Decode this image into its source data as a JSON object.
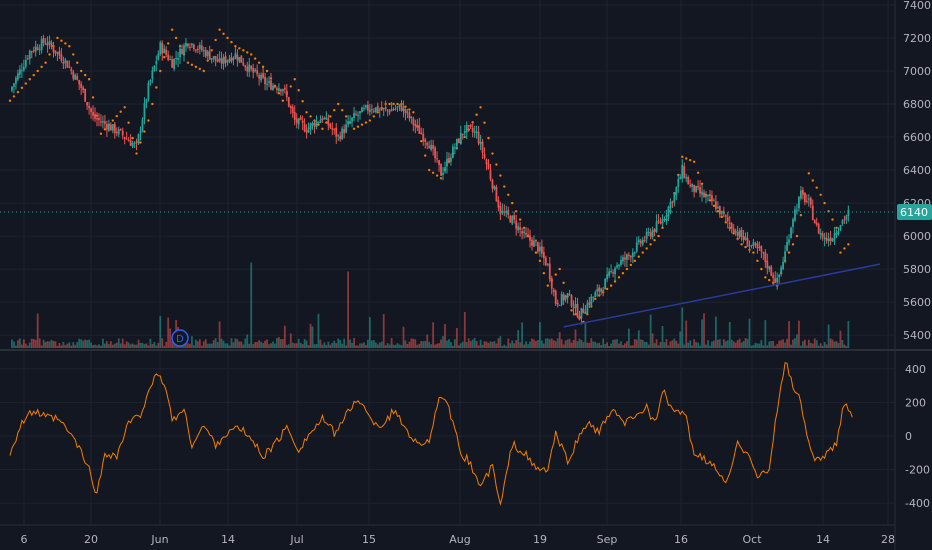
{
  "chart_data": [
    {
      "type": "candlestick",
      "panel": "price",
      "x_tick_labels": [
        "6",
        "20",
        "Jun",
        "14",
        "Jul",
        "15",
        "Aug",
        "19",
        "Sep",
        "16",
        "Oct",
        "14",
        "28"
      ],
      "y_tick_labels": [
        "7400",
        "7200",
        "7000",
        "6800",
        "6600",
        "6400",
        "6200",
        "6000",
        "5800",
        "5600",
        "5400"
      ],
      "ylim": [
        5310,
        7430
      ],
      "last_price": 6140,
      "last_price_label": "6140",
      "dividend_marker": "D",
      "close_path": [
        [
          0,
          6880
        ],
        [
          10,
          7120
        ],
        [
          18,
          7180
        ],
        [
          28,
          7060
        ],
        [
          36,
          6900
        ],
        [
          42,
          6720
        ],
        [
          48,
          6680
        ],
        [
          56,
          6620
        ],
        [
          64,
          6540
        ],
        [
          70,
          6900
        ],
        [
          76,
          7150
        ],
        [
          82,
          7050
        ],
        [
          90,
          7180
        ],
        [
          98,
          7120
        ],
        [
          106,
          7050
        ],
        [
          114,
          7100
        ],
        [
          122,
          7000
        ],
        [
          130,
          6920
        ],
        [
          138,
          6900
        ],
        [
          144,
          6700
        ],
        [
          150,
          6650
        ],
        [
          158,
          6720
        ],
        [
          166,
          6600
        ],
        [
          174,
          6720
        ],
        [
          182,
          6780
        ],
        [
          190,
          6760
        ],
        [
          198,
          6780
        ],
        [
          206,
          6650
        ],
        [
          212,
          6560
        ],
        [
          218,
          6380
        ],
        [
          224,
          6520
        ],
        [
          230,
          6650
        ],
        [
          236,
          6620
        ],
        [
          242,
          6400
        ],
        [
          248,
          6150
        ],
        [
          254,
          6100
        ],
        [
          260,
          6000
        ],
        [
          266,
          5950
        ],
        [
          272,
          5820
        ],
        [
          276,
          5600
        ],
        [
          282,
          5640
        ],
        [
          288,
          5520
        ],
        [
          294,
          5620
        ],
        [
          300,
          5700
        ],
        [
          306,
          5820
        ],
        [
          312,
          5870
        ],
        [
          318,
          5950
        ],
        [
          324,
          6020
        ],
        [
          330,
          6100
        ],
        [
          336,
          6250
        ],
        [
          340,
          6400
        ],
        [
          344,
          6300
        ],
        [
          350,
          6250
        ],
        [
          356,
          6200
        ],
        [
          362,
          6100
        ],
        [
          368,
          6020
        ],
        [
          374,
          5950
        ],
        [
          380,
          5900
        ],
        [
          384,
          5800
        ],
        [
          388,
          5720
        ],
        [
          392,
          5900
        ],
        [
          396,
          6120
        ],
        [
          400,
          6250
        ],
        [
          404,
          6200
        ],
        [
          408,
          6050
        ],
        [
          412,
          5980
        ],
        [
          416,
          6000
        ],
        [
          420,
          6080
        ],
        [
          424,
          6140
        ]
      ],
      "parabolic_sar_path": [
        [
          0,
          6820
        ],
        [
          10,
          6950
        ],
        [
          18,
          7050
        ],
        [
          24,
          7200
        ],
        [
          30,
          7150
        ],
        [
          36,
          7000
        ],
        [
          40,
          6950
        ],
        [
          46,
          6620
        ],
        [
          52,
          6700
        ],
        [
          58,
          6780
        ],
        [
          64,
          6500
        ],
        [
          70,
          6700
        ],
        [
          76,
          7000
        ],
        [
          82,
          7250
        ],
        [
          90,
          7050
        ],
        [
          98,
          7000
        ],
        [
          106,
          7250
        ],
        [
          114,
          7150
        ],
        [
          122,
          7100
        ],
        [
          130,
          7000
        ],
        [
          138,
          6820
        ],
        [
          144,
          6950
        ],
        [
          150,
          6750
        ],
        [
          158,
          6650
        ],
        [
          166,
          6800
        ],
        [
          174,
          6650
        ],
        [
          182,
          6700
        ],
        [
          190,
          6800
        ],
        [
          198,
          6800
        ],
        [
          204,
          6750
        ],
        [
          212,
          6400
        ],
        [
          218,
          6350
        ],
        [
          224,
          6500
        ],
        [
          230,
          6600
        ],
        [
          238,
          6780
        ],
        [
          244,
          6500
        ],
        [
          250,
          6300
        ],
        [
          256,
          6150
        ],
        [
          262,
          6000
        ],
        [
          268,
          5850
        ],
        [
          272,
          5700
        ],
        [
          278,
          5800
        ],
        [
          284,
          5550
        ],
        [
          290,
          5480
        ],
        [
          296,
          5620
        ],
        [
          304,
          5700
        ],
        [
          312,
          5800
        ],
        [
          320,
          5900
        ],
        [
          328,
          6000
        ],
        [
          334,
          6150
        ],
        [
          340,
          6480
        ],
        [
          346,
          6450
        ],
        [
          352,
          6250
        ],
        [
          358,
          6150
        ],
        [
          364,
          6050
        ],
        [
          370,
          5950
        ],
        [
          376,
          5900
        ],
        [
          382,
          5750
        ],
        [
          388,
          5700
        ],
        [
          392,
          5850
        ],
        [
          398,
          6000
        ],
        [
          404,
          6380
        ],
        [
          410,
          6250
        ],
        [
          414,
          6150
        ],
        [
          418,
          6050
        ],
        [
          420,
          5900
        ],
        [
          424,
          5950
        ]
      ],
      "trendline": [
        [
          280,
          5450
        ],
        [
          440,
          5830
        ]
      ]
    },
    {
      "type": "bar",
      "panel": "volume",
      "note_scale": "relative",
      "spikes": [
        [
          122,
          0.95
        ],
        [
          171,
          0.85
        ],
        [
          230,
          0.4
        ],
        [
          340,
          0.45
        ],
        [
          357,
          0.35
        ],
        [
          424,
          0.3
        ]
      ]
    },
    {
      "type": "line",
      "panel": "oscillator",
      "y_tick_labels": [
        "400",
        "200",
        "0",
        "-200",
        "-400"
      ],
      "ylim": [
        -530,
        500
      ],
      "values_path": [
        [
          0,
          -100
        ],
        [
          6,
          80
        ],
        [
          12,
          150
        ],
        [
          18,
          110
        ],
        [
          24,
          100
        ],
        [
          30,
          20
        ],
        [
          34,
          -50
        ],
        [
          40,
          -200
        ],
        [
          44,
          -350
        ],
        [
          48,
          -100
        ],
        [
          54,
          -120
        ],
        [
          60,
          80
        ],
        [
          66,
          120
        ],
        [
          70,
          280
        ],
        [
          74,
          350
        ],
        [
          78,
          320
        ],
        [
          82,
          100
        ],
        [
          88,
          150
        ],
        [
          92,
          -50
        ],
        [
          98,
          60
        ],
        [
          104,
          -50
        ],
        [
          110,
          20
        ],
        [
          116,
          50
        ],
        [
          122,
          -20
        ],
        [
          128,
          -120
        ],
        [
          134,
          -50
        ],
        [
          140,
          50
        ],
        [
          146,
          -80
        ],
        [
          152,
          20
        ],
        [
          158,
          100
        ],
        [
          164,
          20
        ],
        [
          170,
          120
        ],
        [
          176,
          230
        ],
        [
          182,
          100
        ],
        [
          188,
          60
        ],
        [
          194,
          150
        ],
        [
          200,
          50
        ],
        [
          206,
          -50
        ],
        [
          212,
          -20
        ],
        [
          218,
          250
        ],
        [
          222,
          150
        ],
        [
          228,
          -100
        ],
        [
          232,
          -150
        ],
        [
          238,
          -300
        ],
        [
          244,
          -180
        ],
        [
          248,
          -420
        ],
        [
          254,
          -50
        ],
        [
          260,
          -100
        ],
        [
          266,
          -200
        ],
        [
          272,
          -200
        ],
        [
          276,
          10
        ],
        [
          282,
          -150
        ],
        [
          286,
          -50
        ],
        [
          292,
          80
        ],
        [
          298,
          20
        ],
        [
          304,
          150
        ],
        [
          310,
          80
        ],
        [
          316,
          100
        ],
        [
          322,
          180
        ],
        [
          326,
          70
        ],
        [
          330,
          280
        ],
        [
          334,
          160
        ],
        [
          338,
          150
        ],
        [
          342,
          100
        ],
        [
          346,
          -100
        ],
        [
          352,
          -150
        ],
        [
          358,
          -200
        ],
        [
          362,
          -300
        ],
        [
          368,
          -50
        ],
        [
          374,
          -100
        ],
        [
          378,
          -250
        ],
        [
          384,
          -200
        ],
        [
          388,
          150
        ],
        [
          392,
          450
        ],
        [
          396,
          300
        ],
        [
          400,
          200
        ],
        [
          404,
          -50
        ],
        [
          408,
          -150
        ],
        [
          414,
          -100
        ],
        [
          418,
          -50
        ],
        [
          422,
          200
        ],
        [
          426,
          130
        ]
      ]
    }
  ]
}
